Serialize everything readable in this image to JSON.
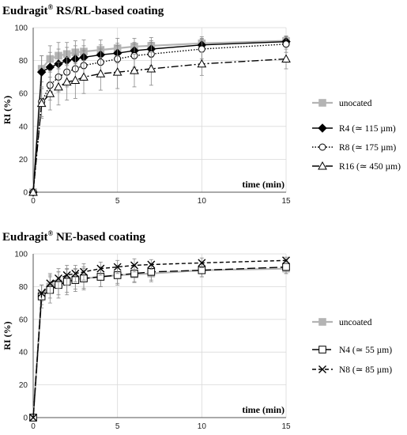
{
  "chart_data": [
    {
      "type": "line",
      "title": "Eudragit",
      "title_sup": "®",
      "title_rest": " RS/RL-based coating",
      "xlabel": "time (min)",
      "ylabel": "RI (%)",
      "xlim": [
        0,
        15
      ],
      "ylim": [
        0,
        100
      ],
      "xticks": [
        "0",
        "5",
        "10",
        "15"
      ],
      "yticks": [
        "0",
        "20",
        "40",
        "60",
        "80",
        "100"
      ],
      "grid": true,
      "legend_position": "right",
      "series": [
        {
          "name": "unocated",
          "color": "#b4b4b4",
          "marker": "square",
          "dash": "solid",
          "x": [
            0,
            0.5,
            1,
            1.5,
            2,
            2.5,
            3,
            4,
            5,
            6,
            7,
            10,
            15
          ],
          "y": [
            0,
            75,
            81,
            83,
            84,
            85,
            85.5,
            86.5,
            87.5,
            88.5,
            89,
            90.5,
            92
          ],
          "err": [
            0,
            8,
            8,
            8,
            7,
            7,
            7,
            6,
            6,
            5,
            5,
            4,
            3
          ]
        },
        {
          "name": "R4 (≃ 115 µm)",
          "color": "#000000",
          "marker": "diamond",
          "dash": "solid",
          "x": [
            0,
            0.5,
            1,
            1.5,
            2,
            2.5,
            3,
            4,
            5,
            6,
            7,
            10,
            15
          ],
          "y": [
            0,
            73,
            76,
            78,
            80,
            81,
            82,
            83.5,
            84.5,
            86,
            87,
            89.5,
            91.5
          ],
          "err": [
            0,
            10,
            9,
            9,
            8,
            8,
            7,
            6,
            6,
            5,
            5,
            4,
            3
          ]
        },
        {
          "name": "R8 (≃ 175 µm)",
          "color": "#000000",
          "marker": "circle",
          "dash": "dotted",
          "x": [
            0,
            0.5,
            1,
            1.5,
            2,
            2.5,
            3,
            4,
            5,
            6,
            7,
            10,
            15
          ],
          "y": [
            0,
            55,
            65,
            70,
            73,
            75,
            77,
            79,
            81,
            83,
            84,
            87,
            90
          ],
          "err": [
            0,
            9,
            9,
            9,
            9,
            9,
            9,
            8,
            8,
            7,
            7,
            6,
            5
          ]
        },
        {
          "name": "R16 (≃ 450 µm)",
          "color": "#000000",
          "marker": "triangle",
          "dash": "dashdot",
          "x": [
            0,
            0.5,
            1,
            1.5,
            2,
            2.5,
            3,
            4,
            5,
            6,
            7,
            10,
            15
          ],
          "y": [
            0,
            54,
            60,
            64,
            67,
            68,
            70,
            72,
            73,
            74,
            75,
            78,
            81
          ],
          "err": [
            0,
            9,
            10,
            11,
            11,
            11,
            10,
            10,
            10,
            10,
            10,
            7,
            6
          ]
        }
      ]
    },
    {
      "type": "line",
      "title": "Eudragit",
      "title_sup": "®",
      "title_rest": " NE-based coating",
      "xlabel": "time (min)",
      "ylabel": "RI (%)",
      "xlim": [
        0,
        15
      ],
      "ylim": [
        0,
        100
      ],
      "xticks": [
        "0",
        "5",
        "10",
        "15"
      ],
      "yticks": [
        "0",
        "20",
        "40",
        "60",
        "80",
        "100"
      ],
      "grid": true,
      "legend_position": "right",
      "series": [
        {
          "name": "uncoated",
          "color": "#b4b4b4",
          "marker": "square",
          "dash": "solid",
          "x": [
            0,
            0.5,
            1,
            1.5,
            2,
            2.5,
            3,
            4,
            5,
            6,
            7,
            10,
            15
          ],
          "y": [
            0,
            75,
            80,
            82,
            83.5,
            84.5,
            85,
            86,
            87,
            87.5,
            88,
            90,
            91
          ],
          "err": [
            0,
            6,
            7,
            7,
            7,
            6,
            6,
            6,
            5,
            5,
            5,
            4,
            3
          ]
        },
        {
          "name": "N4 (≃ 55 µm)",
          "color": "#000000",
          "marker": "open-square",
          "dash": "longdash",
          "x": [
            0,
            0.5,
            1,
            1.5,
            2,
            2.5,
            3,
            4,
            5,
            6,
            7,
            10,
            15
          ],
          "y": [
            0,
            74,
            78,
            81,
            83,
            84,
            85,
            86,
            87,
            88,
            89,
            90,
            92
          ],
          "err": [
            0,
            7,
            8,
            8,
            8,
            7,
            7,
            6,
            6,
            5,
            5,
            4,
            4
          ]
        },
        {
          "name": "N8 (≃ 85 µm)",
          "color": "#000000",
          "marker": "x",
          "dash": "dashed",
          "x": [
            0,
            0.5,
            1,
            1.5,
            2,
            2.5,
            3,
            4,
            5,
            6,
            7,
            10,
            15
          ],
          "y": [
            0,
            76,
            82,
            85,
            87,
            88,
            89,
            91,
            92,
            93,
            93.5,
            94.5,
            96
          ],
          "err": [
            0,
            5,
            6,
            6,
            6,
            5,
            5,
            4,
            4,
            4,
            3,
            3,
            2
          ]
        }
      ]
    }
  ]
}
